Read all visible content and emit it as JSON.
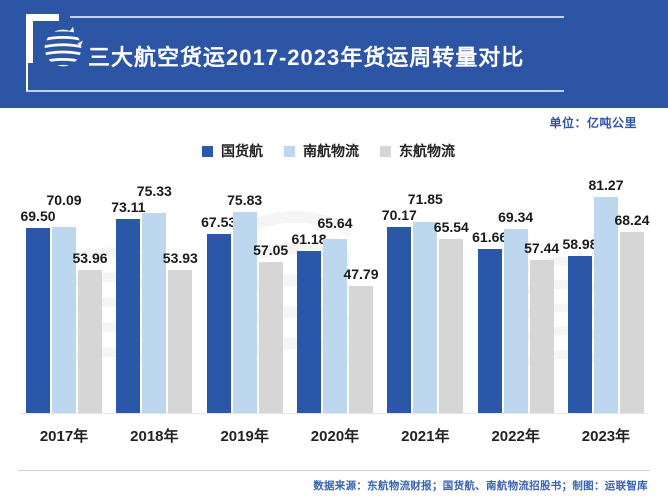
{
  "header": {
    "title": "三大航空货运2017-2023年货运周转量对比",
    "bg_color": "#2d55a5",
    "logo": "yunlian-swirl-globe"
  },
  "unit_label": "单位：亿吨公里",
  "chart_data": {
    "type": "bar",
    "title": "三大航空货运2017-2023年货运周转量对比",
    "unit": "亿吨公里",
    "categories": [
      "2017年",
      "2018年",
      "2019年",
      "2020年",
      "2021年",
      "2022年",
      "2023年"
    ],
    "series": [
      {
        "name": "国货航",
        "color": "#2b57a8",
        "values": [
          69.5,
          73.11,
          67.53,
          61.18,
          70.17,
          61.66,
          58.98
        ]
      },
      {
        "name": "南航物流",
        "color": "#bdd7ee",
        "values": [
          70.09,
          75.33,
          75.83,
          65.64,
          71.85,
          69.34,
          81.27
        ]
      },
      {
        "name": "东航物流",
        "color": "#d6d6d6",
        "values": [
          53.96,
          53.93,
          57.05,
          47.79,
          65.54,
          57.44,
          68.24
        ]
      }
    ],
    "ylim": [
      0,
      94
    ],
    "value_labels": true,
    "value_label_decimals": 2,
    "grid": false,
    "legend_position": "top"
  },
  "footer": {
    "source_text": "数据来源：东航物流财报；国货航、南航物流招股书；制图：运联智库"
  }
}
